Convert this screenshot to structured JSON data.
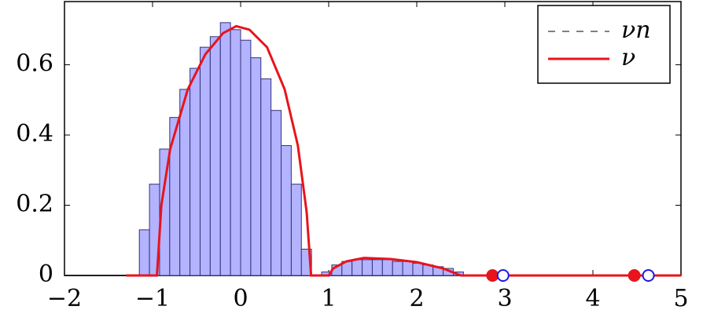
{
  "chart_data": {
    "type": "histogram",
    "xlim": [
      -2,
      5
    ],
    "ylim": [
      0,
      0.78
    ],
    "xticks": [
      {
        "value": -2,
        "label": "−2"
      },
      {
        "value": -1,
        "label": "−1"
      },
      0,
      1,
      2,
      3,
      4,
      5
    ],
    "yticks": [
      0,
      0.2,
      0.4,
      0.6
    ],
    "legend": "top-right",
    "bins": [
      -1.15,
      -1.035,
      -0.92,
      -0.805,
      -0.69,
      -0.575,
      -0.46,
      -0.345,
      -0.23,
      -0.115,
      0,
      0.115,
      0.23,
      0.345,
      0.46,
      0.575,
      0.69,
      0.805,
      0.92,
      1.035,
      1.15,
      1.265,
      1.38,
      1.495,
      1.61,
      1.725,
      1.84,
      1.955,
      2.07,
      2.185,
      2.3,
      2.415,
      2.53
    ],
    "series": [
      {
        "name": "νn",
        "color": "#b3b3ff",
        "edge_color": "#33337a",
        "legend_color": "#808080",
        "values": [
          0.13,
          0.26,
          0.36,
          0.45,
          0.53,
          0.59,
          0.65,
          0.68,
          0.72,
          0.7,
          0.67,
          0.62,
          0.56,
          0.47,
          0.37,
          0.26,
          0.075,
          0,
          0.01,
          0.03,
          0.04,
          0.045,
          0.045,
          0.045,
          0.045,
          0.04,
          0.04,
          0.035,
          0.03,
          0.025,
          0.02,
          0.01
        ]
      },
      {
        "name": "ν",
        "type": "line",
        "color": "#e8141c",
        "x": [
          -1.3,
          -0.95,
          -0.9,
          -0.8,
          -0.6,
          -0.4,
          -0.2,
          -0.05,
          0.1,
          0.3,
          0.5,
          0.65,
          0.75,
          0.8,
          1.0,
          1.05,
          1.2,
          1.4,
          1.7,
          2.0,
          2.3,
          2.5,
          3,
          4,
          5
        ],
        "values": [
          0,
          0,
          0.2,
          0.36,
          0.53,
          0.63,
          0.69,
          0.71,
          0.7,
          0.65,
          0.53,
          0.37,
          0.18,
          0,
          0,
          0.02,
          0.04,
          0.05,
          0.047,
          0.038,
          0.02,
          0,
          0,
          0,
          0
        ]
      },
      {
        "type": "scatter",
        "color": "#e8141c",
        "filled": true,
        "x": [
          2.86,
          4.47
        ],
        "values": [
          0,
          0
        ]
      },
      {
        "type": "scatter",
        "color": "#1a1ae6",
        "filled": false,
        "x": [
          2.98,
          4.63
        ],
        "values": [
          0,
          0
        ]
      }
    ]
  }
}
